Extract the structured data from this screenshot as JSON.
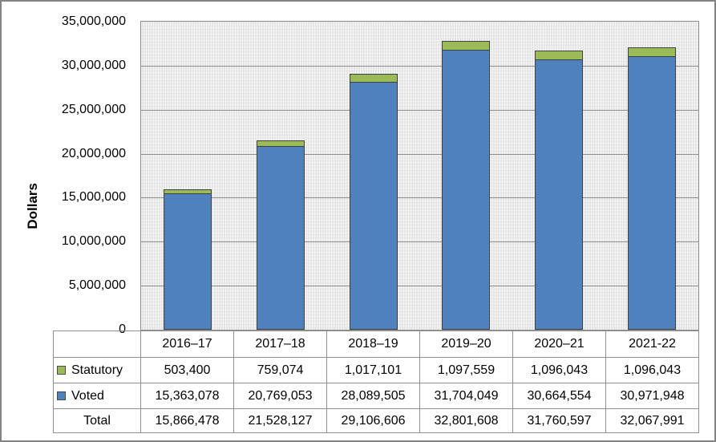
{
  "chart_data": {
    "type": "bar",
    "stacked": true,
    "title": "",
    "ylabel": "Dollars",
    "categories": [
      "2016–17",
      "2017–18",
      "2018–19",
      "2019–20",
      "2020–21",
      "2021-22"
    ],
    "series": [
      {
        "name": "Voted",
        "color": "#4F81BD",
        "values": [
          15363078,
          20769053,
          28089505,
          31704049,
          30664554,
          30971948
        ]
      },
      {
        "name": "Statutory",
        "color": "#9BBB59",
        "values": [
          503400,
          759074,
          1017101,
          1097559,
          1096043,
          1096043
        ]
      }
    ],
    "totals": [
      15866478,
      21528127,
      29106606,
      32801608,
      31760597,
      32067991
    ],
    "ylim": [
      0,
      35000000
    ],
    "ytick_interval": 5000000,
    "ytick_labels_bottom_up": [
      "0",
      "5,000,000",
      "10,000,000",
      "15,000,000",
      "20,000,000",
      "25,000,000",
      "30,000,000",
      "35,000,000"
    ],
    "grid": true,
    "legend_position": "data-table",
    "colors": {
      "voted": "#4F81BD",
      "statutory": "#9BBB59",
      "plot_bg": "#E4E4E4",
      "gridline": "#8F8F8F",
      "bar_border": "#404040",
      "table_border": "#8F8F8F",
      "frame_border": "#828282"
    }
  },
  "data_table": {
    "rows": [
      {
        "label": "Statutory",
        "key_color": "#9BBB59",
        "values": [
          "503,400",
          "759,074",
          "1,017,101",
          "1,097,559",
          "1,096,043",
          "1,096,043"
        ]
      },
      {
        "label": "Voted",
        "key_color": "#4F81BD",
        "values": [
          "15,363,078",
          "20,769,053",
          "28,089,505",
          "31,704,049",
          "30,664,554",
          "30,971,948"
        ]
      },
      {
        "label": "Total",
        "key_color": null,
        "values": [
          "15,866,478",
          "21,528,127",
          "29,106,606",
          "32,801,608",
          "31,760,597",
          "32,067,991"
        ]
      }
    ]
  }
}
